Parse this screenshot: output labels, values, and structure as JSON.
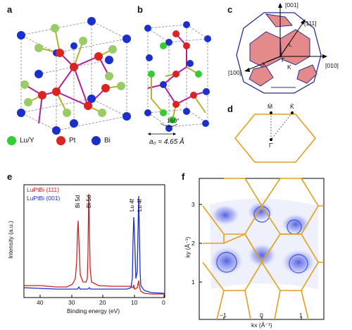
{
  "panels": {
    "a": "a",
    "b": "b",
    "c": "c",
    "d": "d",
    "e": "e",
    "f": "f"
  },
  "legend_a": [
    {
      "label": "Lu/Y",
      "color": "#33cc33"
    },
    {
      "label": "Pt",
      "color": "#dd2222"
    },
    {
      "label": "Bi",
      "color": "#1a2fcc"
    }
  ],
  "panel_b": {
    "angle": "160°",
    "lattice": "a₀ ≈ 4.65 Å"
  },
  "panel_c": {
    "dir_001": "[001]",
    "dir_111": "[111]",
    "dir_100": "[100]",
    "dir_010": "[010]",
    "pt_L": "L",
    "pt_X": "X",
    "pt_K": "K",
    "pt_G": "Γ"
  },
  "panel_d": {
    "pt_M": "M̄",
    "pt_K": "K̄",
    "pt_G": "Γ̄"
  },
  "panel_e": {
    "legend1": "LuPtBi (111)",
    "legend2": "LuPtBi (001)",
    "legend1_color": "#cc2222",
    "legend2_color": "#1a2fcc",
    "ylabel": "Intensity (a.u.)",
    "xlabel": "Binding energy (eV)",
    "xticks": [
      "40",
      "30",
      "20",
      "10",
      "0"
    ],
    "peak_labels": [
      "Bi 5d3/2",
      "Bi 5d5/2",
      "Lu 4f5/2",
      "Lu 4f7/2"
    ]
  },
  "panel_f": {
    "xlabel": "kx (Å⁻¹)",
    "ylabel": "ky (Å⁻¹)",
    "xticks": [
      "−1",
      "0",
      "1"
    ],
    "yticks": [
      "3",
      "2",
      "1"
    ],
    "hex_color": "#e0a020"
  },
  "chart_data": [
    {
      "type": "line",
      "title": "",
      "xlabel": "Binding energy (eV)",
      "ylabel": "Intensity (a.u.)",
      "xlim": [
        45,
        0
      ],
      "series": [
        {
          "name": "LuPtBi (111)",
          "x": [
            45,
            40,
            35,
            30,
            28,
            27,
            26.5,
            25,
            24,
            23.5,
            22,
            20,
            15,
            10,
            9,
            8.5,
            8,
            7.5,
            7,
            5,
            2,
            0
          ],
          "y": [
            0.1,
            0.09,
            0.08,
            0.08,
            0.12,
            0.7,
            0.4,
            0.1,
            0.6,
            0.1,
            0.06,
            0.06,
            0.06,
            0.06,
            0.09,
            0.05,
            0.12,
            0.06,
            0.04,
            0.02,
            0.0,
            0.0
          ]
        },
        {
          "name": "LuPtBi (001)",
          "x": [
            45,
            40,
            35,
            30,
            28,
            27,
            26.5,
            25,
            24,
            23.5,
            22,
            20,
            15,
            10,
            9,
            8.5,
            8,
            7.5,
            7,
            5,
            2,
            0
          ],
          "y": [
            0.07,
            0.06,
            0.05,
            0.05,
            0.06,
            0.08,
            0.07,
            0.06,
            0.07,
            0.06,
            0.05,
            0.05,
            0.05,
            0.08,
            0.7,
            0.3,
            0.9,
            0.2,
            0.06,
            0.03,
            0.01,
            0.0
          ]
        }
      ]
    }
  ]
}
